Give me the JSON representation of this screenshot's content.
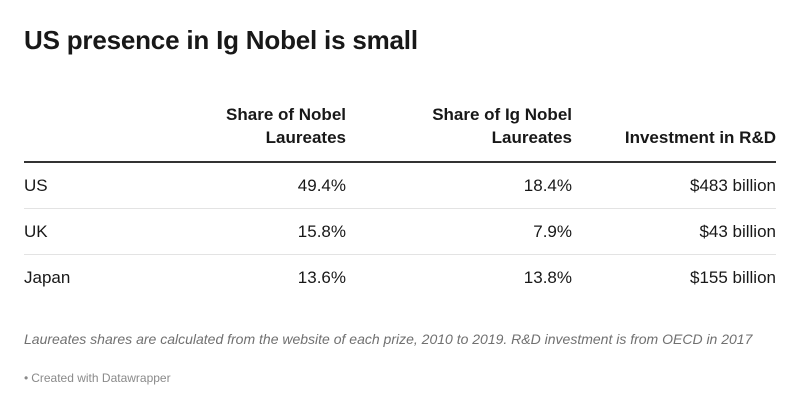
{
  "chart_data": {
    "type": "table",
    "title": "US presence in Ig Nobel is small",
    "columns": [
      "",
      "Share of Nobel Laureates",
      "Share of Ig Nobel Laureates",
      "Investment in R&D"
    ],
    "header_lines": [
      [
        "",
        ""
      ],
      [
        "Share of Nobel",
        "Laureates"
      ],
      [
        "Share of Ig Nobel",
        "Laureates"
      ],
      [
        "",
        "Investment in R&D"
      ]
    ],
    "rows": [
      {
        "country": "US",
        "nobel_share": "49.4%",
        "ig_nobel_share": "18.4%",
        "rd_investment": "$483 billion"
      },
      {
        "country": "UK",
        "nobel_share": "15.8%",
        "ig_nobel_share": "7.9%",
        "rd_investment": "$43 billion"
      },
      {
        "country": "Japan",
        "nobel_share": "13.6%",
        "ig_nobel_share": "13.8%",
        "rd_investment": "$155 billion"
      }
    ],
    "note": "Laureates shares are calculated from the website of each prize, 2010 to 2019. R&D investment is from OECD in 2017",
    "credit": "Created with Datawrapper"
  },
  "colors": {
    "text": "#181818",
    "header_rule": "#333333",
    "row_rule": "#e3e3e3",
    "note": "#707070",
    "credit": "#8a8a8a"
  }
}
